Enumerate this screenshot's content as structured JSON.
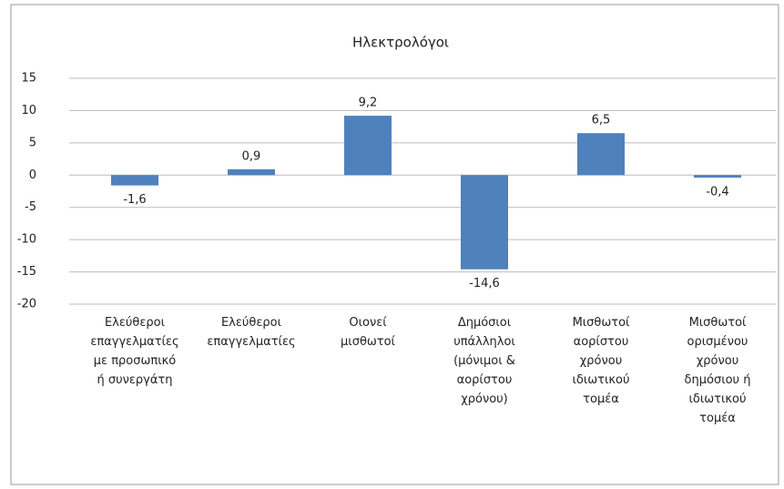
{
  "chart_data": {
    "type": "bar",
    "title": "Ηλεκτρολόγοι",
    "categories": [
      "Ελεύθεροι\nεπαγγελματίες\nμε προσωπικό\nή συνεργάτη",
      "Ελεύθεροι\nεπαγγελματίες",
      "Οιονεί\nμισθωτοί",
      "Δημόσιοι\nυπάλληλοι\n(μόνιμοι &\nαορίστου\nχρόνου)",
      "Μισθωτοί\nαορίστου\nχρόνου\nιδιωτικού\nτομέα",
      "Μισθωτοί\nορισμένου\nχρόνου\nδημόσιου ή\nιδιωτικού\nτομέα"
    ],
    "values": [
      -1.6,
      0.9,
      9.2,
      -14.6,
      6.5,
      -0.4
    ],
    "value_labels": [
      "-1,6",
      "0,9",
      "9,2",
      "-14,6",
      "6,5",
      "-0,4"
    ],
    "color": "#4f81bd",
    "ylim": [
      -20,
      15
    ],
    "yticks": [
      -20,
      -15,
      -10,
      -5,
      0,
      5,
      10,
      15
    ],
    "grid": true
  }
}
